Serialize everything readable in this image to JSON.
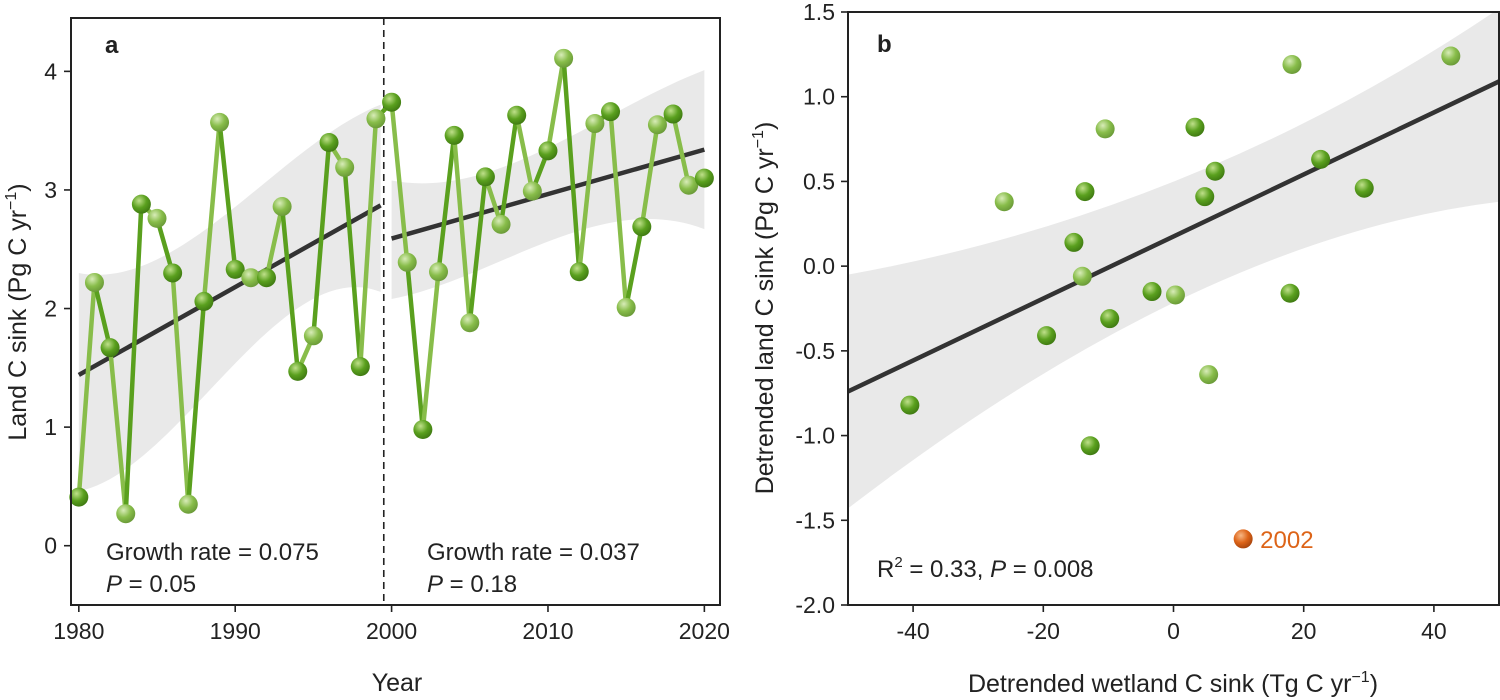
{
  "colors": {
    "series": "#5aa01e",
    "series_light": "#88bd4a",
    "trend": "#333333",
    "ci_band": "#e9e9e9",
    "highlight": "#dd6418",
    "axis": "#222222"
  },
  "chart_data": [
    {
      "type": "line",
      "panel_label": "a",
      "xlabel": "Year",
      "ylabel": "Land C sink (Pg C yr",
      "ylabel_sup": "−1",
      "ylabel_end": ")",
      "xlim": [
        1979.5,
        2021
      ],
      "ylim": [
        -0.5,
        4.45
      ],
      "xticks": [
        1980,
        1990,
        2000,
        2010,
        2020
      ],
      "yticks": [
        0,
        1,
        2,
        3,
        4
      ],
      "breakpoint": 1999.5,
      "series": [
        {
          "x": [
            1980,
            1981,
            1982,
            1983,
            1984,
            1985,
            1986,
            1987,
            1988,
            1989,
            1990,
            1991,
            1992,
            1993,
            1994,
            1995,
            1996,
            1997,
            1998,
            1999,
            2000,
            2001,
            2002,
            2003,
            2004,
            2005,
            2006,
            2007,
            2008,
            2009,
            2010,
            2011,
            2012,
            2013,
            2014,
            2015,
            2016,
            2017,
            2018,
            2019,
            2020
          ],
          "y": [
            0.41,
            2.22,
            1.67,
            0.27,
            2.88,
            2.76,
            2.3,
            0.35,
            2.06,
            3.57,
            2.33,
            2.26,
            2.26,
            2.86,
            1.47,
            1.77,
            3.4,
            3.19,
            1.51,
            3.6,
            3.74,
            2.39,
            0.98,
            2.31,
            3.46,
            1.88,
            3.11,
            2.71,
            3.63,
            2.99,
            3.33,
            4.11,
            2.31,
            3.56,
            3.66,
            2.01,
            2.69,
            3.55,
            3.64,
            3.04,
            3.1
          ]
        }
      ],
      "trends": [
        {
          "x": [
            1980,
            1999.3
          ],
          "y": [
            1.44,
            2.87
          ],
          "ci_lower": [
            0.46,
            2.14
          ],
          "ci_upper": [
            2.3,
            3.72
          ],
          "annotation_line1": "Growth rate = 0.075",
          "annotation_p_label": "P",
          "annotation_p_value": " = 0.05"
        },
        {
          "x": [
            2000,
            2020
          ],
          "y": [
            2.59,
            3.34
          ],
          "ci_lower": [
            2.08,
            2.67
          ],
          "ci_upper": [
            3.08,
            4.01
          ],
          "annotation_line1": "Growth rate = 0.037",
          "annotation_p_label": "P",
          "annotation_p_value": " = 0.18"
        }
      ]
    },
    {
      "type": "scatter",
      "panel_label": "b",
      "xlabel": "Detrended wetland C sink (Tg C yr",
      "xlabel_sup": "−1",
      "xlabel_end": ")",
      "ylabel": "Detrended land C sink (Pg C yr",
      "ylabel_sup": "−1",
      "ylabel_end": ")",
      "xlim": [
        -50,
        50
      ],
      "ylim": [
        -2.0,
        1.5
      ],
      "xticks": [
        -40,
        -20,
        0,
        20,
        40
      ],
      "xtick_labels": [
        "-40",
        "-20",
        "0",
        "20",
        "40"
      ],
      "yticks": [
        -2.0,
        -1.5,
        -1.0,
        -0.5,
        0.0,
        0.5,
        1.0,
        1.5
      ],
      "ytick_labels": [
        "-2.0",
        "-1.5",
        "-1.0",
        "-0.5",
        "0.0",
        "0.5",
        "1.0",
        "1.5"
      ],
      "points": [
        {
          "x": -40.5,
          "y": -0.82
        },
        {
          "x": -26.0,
          "y": 0.38
        },
        {
          "x": -19.5,
          "y": -0.41
        },
        {
          "x": -15.3,
          "y": 0.14
        },
        {
          "x": -14.0,
          "y": -0.06
        },
        {
          "x": -13.6,
          "y": 0.44
        },
        {
          "x": -12.8,
          "y": -1.06
        },
        {
          "x": -10.5,
          "y": 0.81
        },
        {
          "x": -9.8,
          "y": -0.31
        },
        {
          "x": -3.3,
          "y": -0.15
        },
        {
          "x": 0.3,
          "y": -0.17
        },
        {
          "x": 3.3,
          "y": 0.82
        },
        {
          "x": 4.8,
          "y": 0.41
        },
        {
          "x": 5.4,
          "y": -0.64
        },
        {
          "x": 6.4,
          "y": 0.56
        },
        {
          "x": 17.9,
          "y": -0.16
        },
        {
          "x": 18.2,
          "y": 1.19
        },
        {
          "x": 22.6,
          "y": 0.63
        },
        {
          "x": 29.3,
          "y": 0.46
        },
        {
          "x": 42.6,
          "y": 1.24
        }
      ],
      "highlight_point": {
        "x": 10.7,
        "y": -1.61,
        "label": "2002"
      },
      "fit": {
        "x": [
          -50,
          50
        ],
        "y": [
          -0.74,
          1.09
        ],
        "ci_lower": [
          -1.43,
          0.38
        ],
        "ci_upper": [
          -0.05,
          1.52
        ]
      },
      "annotation_r_label": "R",
      "annotation_r_sup": "2",
      "annotation_r_value": " = 0.33, ",
      "annotation_p_label": "P",
      "annotation_p_value": " = 0.008"
    }
  ]
}
